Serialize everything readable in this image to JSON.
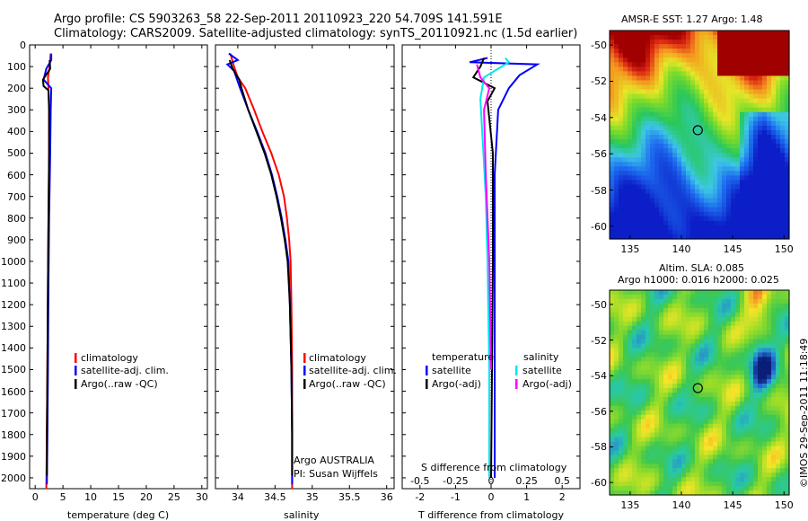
{
  "header": {
    "line1": "Argo profile: CS 5903263_58 22-Sep-2011 20110923_220 54.709S 141.591E",
    "line2": "Climatology: CARS2009. Satellite-adjusted climatology: synTS_20110921.nc (1.5d earlier)"
  },
  "colors": {
    "climatology": "#ff0000",
    "satellite": "#0000ff",
    "argo": "#000000",
    "satellite_s": "#00e5ee",
    "argo_s": "#ff00ff"
  },
  "depth_axis": {
    "ticks": [
      0,
      100,
      200,
      300,
      400,
      500,
      600,
      700,
      800,
      900,
      1000,
      1100,
      1200,
      1300,
      1400,
      1500,
      1600,
      1700,
      1800,
      1900,
      2000
    ]
  },
  "chart_data": [
    {
      "type": "line",
      "panel": "temperature",
      "xlabel": "temperature (deg C)",
      "xlim": [
        -1,
        31
      ],
      "ylim": [
        2050,
        0
      ],
      "xticks": [
        "0",
        "5",
        "10",
        "15",
        "20",
        "25",
        "30"
      ],
      "legend": [
        "climatology",
        "satellite-adj. clim.",
        "Argo(..raw -QC)"
      ],
      "series": [
        {
          "name": "climatology",
          "color": "#ff0000",
          "points": [
            [
              2.8,
              40
            ],
            [
              2.6,
              100
            ],
            [
              2.3,
              150
            ],
            [
              2.4,
              200
            ],
            [
              2.5,
              300
            ],
            [
              2.5,
              500
            ],
            [
              2.4,
              800
            ],
            [
              2.3,
              1100
            ],
            [
              2.2,
              1500
            ],
            [
              2.1,
              1800
            ],
            [
              2.0,
              2050
            ]
          ]
        },
        {
          "name": "satellite-adj. clim.",
          "color": "#0000ff",
          "points": [
            [
              2.9,
              40
            ],
            [
              2.9,
              70
            ],
            [
              2.0,
              110
            ],
            [
              1.5,
              160
            ],
            [
              2.9,
              200
            ],
            [
              2.8,
              300
            ],
            [
              2.7,
              500
            ],
            [
              2.5,
              800
            ],
            [
              2.4,
              1100
            ],
            [
              2.3,
              1500
            ],
            [
              2.2,
              1800
            ],
            [
              2.1,
              2030
            ]
          ]
        },
        {
          "name": "Argo(..raw -QC)",
          "color": "#000000",
          "points": [
            [
              2.6,
              70
            ],
            [
              2.7,
              110
            ],
            [
              1.4,
              160
            ],
            [
              1.5,
              190
            ],
            [
              2.4,
              210
            ],
            [
              2.5,
              300
            ],
            [
              2.5,
              500
            ],
            [
              2.4,
              800
            ],
            [
              2.3,
              1100
            ],
            [
              2.2,
              1500
            ],
            [
              2.1,
              1800
            ],
            [
              2.1,
              1990
            ]
          ]
        }
      ]
    },
    {
      "type": "line",
      "panel": "salinity",
      "xlabel": "salinity",
      "xlim": [
        33.7,
        36.1
      ],
      "ylim": [
        2050,
        0
      ],
      "xticks": [
        "34",
        "34.5",
        "35",
        "35.5",
        "36"
      ],
      "legend": [
        "climatology",
        "satellite-adj. clim.",
        "Argo(..raw -QC)"
      ],
      "annotation": [
        "Argo AUSTRALIA",
        "PI: Susan Wijffels"
      ],
      "series": [
        {
          "name": "climatology",
          "color": "#ff0000",
          "points": [
            [
              33.9,
              40
            ],
            [
              33.95,
              100
            ],
            [
              34.0,
              150
            ],
            [
              34.1,
              200
            ],
            [
              34.22,
              300
            ],
            [
              34.33,
              400
            ],
            [
              34.45,
              500
            ],
            [
              34.55,
              600
            ],
            [
              34.62,
              700
            ],
            [
              34.66,
              800
            ],
            [
              34.69,
              900
            ],
            [
              34.71,
              1000
            ],
            [
              34.72,
              1200
            ],
            [
              34.73,
              1500
            ],
            [
              34.73,
              1800
            ],
            [
              34.73,
              2050
            ]
          ]
        },
        {
          "name": "satellite-adj. clim.",
          "color": "#0000ff",
          "points": [
            [
              33.88,
              40
            ],
            [
              34.0,
              70
            ],
            [
              33.86,
              90
            ],
            [
              33.95,
              120
            ],
            [
              34.03,
              200
            ],
            [
              34.14,
              300
            ],
            [
              34.26,
              400
            ],
            [
              34.37,
              500
            ],
            [
              34.46,
              600
            ],
            [
              34.53,
              700
            ],
            [
              34.59,
              800
            ],
            [
              34.64,
              900
            ],
            [
              34.68,
              1000
            ],
            [
              34.7,
              1200
            ],
            [
              34.72,
              1500
            ],
            [
              34.73,
              1800
            ],
            [
              34.73,
              2030
            ]
          ]
        },
        {
          "name": "Argo(..raw -QC)",
          "color": "#000000",
          "points": [
            [
              33.89,
              70
            ],
            [
              33.93,
              110
            ],
            [
              34.02,
              160
            ],
            [
              34.05,
              200
            ],
            [
              34.14,
              300
            ],
            [
              34.25,
              400
            ],
            [
              34.36,
              500
            ],
            [
              34.45,
              600
            ],
            [
              34.52,
              700
            ],
            [
              34.58,
              800
            ],
            [
              34.63,
              900
            ],
            [
              34.67,
              1000
            ],
            [
              34.7,
              1200
            ],
            [
              34.72,
              1500
            ],
            [
              34.73,
              1800
            ],
            [
              34.73,
              1990
            ]
          ]
        }
      ]
    },
    {
      "type": "line",
      "panel": "difference",
      "xlabel": "T difference from climatology",
      "xlabel_top": "S difference from climatology",
      "xlim": [
        -2.5,
        2.5
      ],
      "ylim": [
        2050,
        0
      ],
      "xticks": [
        "-2",
        "-1",
        "0",
        "1",
        "2"
      ],
      "sticks": [
        "-0.5",
        "-0.25",
        "0",
        "0.25",
        "0.5"
      ],
      "legend_t_title": "temperature",
      "legend_s_title": "salinity",
      "legend": [
        "satellite",
        "Argo(-adj)",
        "satellite",
        "Argo(-adj)"
      ],
      "series": [
        {
          "name": "satellite",
          "color": "#0000ff",
          "points": [
            [
              -0.1,
              60
            ],
            [
              -0.6,
              80
            ],
            [
              1.3,
              90
            ],
            [
              0.8,
              140
            ],
            [
              0.5,
              200
            ],
            [
              0.2,
              300
            ],
            [
              0.1,
              600
            ],
            [
              0.1,
              1200
            ],
            [
              0.1,
              2000
            ]
          ]
        },
        {
          "name": "Argo(-adj)",
          "color": "#000000",
          "points": [
            [
              -0.2,
              60
            ],
            [
              -0.3,
              100
            ],
            [
              -0.5,
              150
            ],
            [
              0.1,
              200
            ],
            [
              -0.1,
              260
            ],
            [
              0.05,
              500
            ],
            [
              0.05,
              1000
            ],
            [
              0.0,
              2000
            ]
          ]
        },
        {
          "name": "satellite",
          "color": "#00e5ee",
          "points": [
            [
              0.4,
              60
            ],
            [
              0.5,
              80
            ],
            [
              -0.2,
              150
            ],
            [
              -0.3,
              250
            ],
            [
              -0.25,
              400
            ],
            [
              -0.15,
              700
            ],
            [
              -0.1,
              1000
            ],
            [
              -0.05,
              1500
            ],
            [
              -0.05,
              2000
            ]
          ]
        },
        {
          "name": "Argo(-adj)",
          "color": "#ff00ff",
          "points": [
            [
              -0.4,
              90
            ],
            [
              -0.3,
              150
            ],
            [
              -0.05,
              200
            ],
            [
              -0.2,
              300
            ],
            [
              -0.15,
              600
            ],
            [
              -0.05,
              1000
            ],
            [
              0.0,
              1500
            ]
          ]
        }
      ]
    },
    {
      "type": "heatmap",
      "panel": "sst-map",
      "title": "AMSR-E SST: 1.27 Argo: 1.48",
      "xticks": [
        "135",
        "140",
        "145",
        "150"
      ],
      "yticks": [
        "-50",
        "-52",
        "-54",
        "-56",
        "-58",
        "-60"
      ],
      "marker": {
        "lon": 141.6,
        "lat": -54.7
      }
    },
    {
      "type": "heatmap",
      "panel": "sla-map",
      "title": [
        "Altim. SLA: 0.085",
        "Argo h1000: 0.016 h2000: 0.025"
      ],
      "xticks": [
        "135",
        "140",
        "145",
        "150"
      ],
      "yticks": [
        "-50",
        "-52",
        "-54",
        "-56",
        "-58",
        "-60"
      ],
      "marker": {
        "lon": 141.6,
        "lat": -54.7
      }
    }
  ],
  "credit": "©IMOS 29-Sep-2011 11:18:49"
}
